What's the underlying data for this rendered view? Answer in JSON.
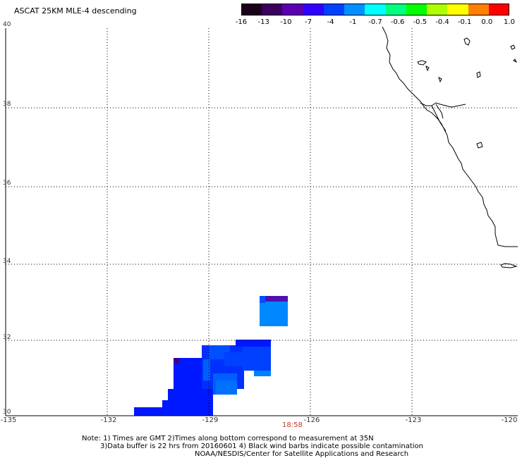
{
  "title": "ASCAT 25KM MLE-4 descending",
  "colorbar": {
    "labels": [
      "-16",
      "-13",
      "-10",
      "-7",
      "-4",
      "-1",
      "-0.7",
      "-0.6",
      "-0.5",
      "-0.4",
      "-0.1",
      "0.0",
      "1.0"
    ],
    "colors": [
      "#1a001a",
      "#3a0060",
      "#5a00b0",
      "#3000ff",
      "#0040ff",
      "#0090ff",
      "#00ffff",
      "#00ff80",
      "#00ff00",
      "#b0ff00",
      "#ffff00",
      "#ff8000",
      "#ff0000"
    ]
  },
  "axes": {
    "lat_labels": [
      "40",
      "38",
      "36",
      "34",
      "32",
      "30"
    ],
    "lon_labels": [
      "-135",
      "-132",
      "-129",
      "-126",
      "-123",
      "-120"
    ]
  },
  "time_label": "18:58",
  "notes": {
    "line1": "Note: 1) Times are GMT 2)Times along bottom correspond to measurement at 35N",
    "line2": "3)Data buffer is 22 hrs from 20160601 4) Black wind barbs indicate possible contamination",
    "line3": "NOAA/NESDIS/Center for Satellite Applications and Research"
  },
  "colors": {
    "data_blue": "#0018ff",
    "data_mid": "#0050ff",
    "data_light": "#0090ff",
    "data_purple": "#4010c0",
    "coast": "#000000",
    "grid": "#000000",
    "time": "#c0392b"
  }
}
